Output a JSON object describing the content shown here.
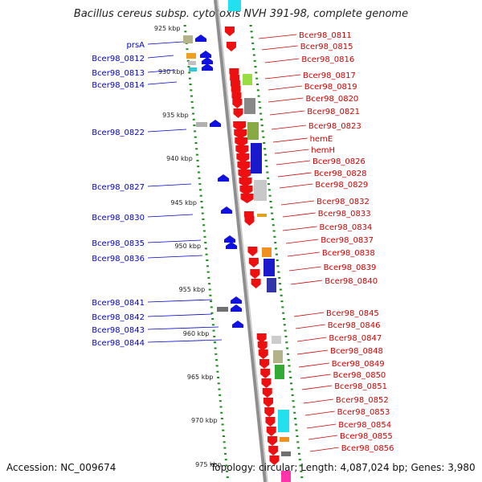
{
  "title": "Bacillus cereus subsp. cytotoxis NVH 391-98, complete genome",
  "accession": "Accession: NC_009674",
  "summary": "Topology: circular; Length: 4,087,024 bp; Genes: 3,980",
  "colors": {
    "left_label": "#0000cc",
    "right_label": "#cc0000",
    "ruler_tick": "#1a8c1a",
    "backbone": "#9a9a9a",
    "forward_gene": "#1010e0",
    "reverse_gene": "#ee1010"
  },
  "kbp_ticks": [
    "925 kbp",
    "930 kbp",
    "935 kbp",
    "940 kbp",
    "945 kbp",
    "950 kbp",
    "955 kbp",
    "960 kbp",
    "965 kbp",
    "970 kbp",
    "975 kbp"
  ],
  "left_genes": [
    "prsA",
    "Bcer98_0812",
    "Bcer98_0813",
    "Bcer98_0814",
    "Bcer98_0822",
    "Bcer98_0827",
    "Bcer98_0830",
    "Bcer98_0835",
    "Bcer98_0836",
    "Bcer98_0841",
    "Bcer98_0842",
    "Bcer98_0843",
    "Bcer98_0844"
  ],
  "right_genes": [
    "Bcer98_0811",
    "Bcer98_0815",
    "Bcer98_0816",
    "Bcer98_0817",
    "Bcer98_0819",
    "Bcer98_0820",
    "Bcer98_0821",
    "Bcer98_0823",
    "hemE",
    "hemH",
    "Bcer98_0826",
    "Bcer98_0828",
    "Bcer98_0829",
    "Bcer98_0832",
    "Bcer98_0833",
    "Bcer98_0834",
    "Bcer98_0837",
    "Bcer98_0838",
    "Bcer98_0839",
    "Bcer98_0840",
    "Bcer98_0845",
    "Bcer98_0846",
    "Bcer98_0847",
    "Bcer98_0848",
    "Bcer98_0849",
    "Bcer98_0850",
    "Bcer98_0851",
    "Bcer98_0852",
    "Bcer98_0853",
    "Bcer98_0854",
    "Bcer98_0855",
    "Bcer98_0856"
  ]
}
